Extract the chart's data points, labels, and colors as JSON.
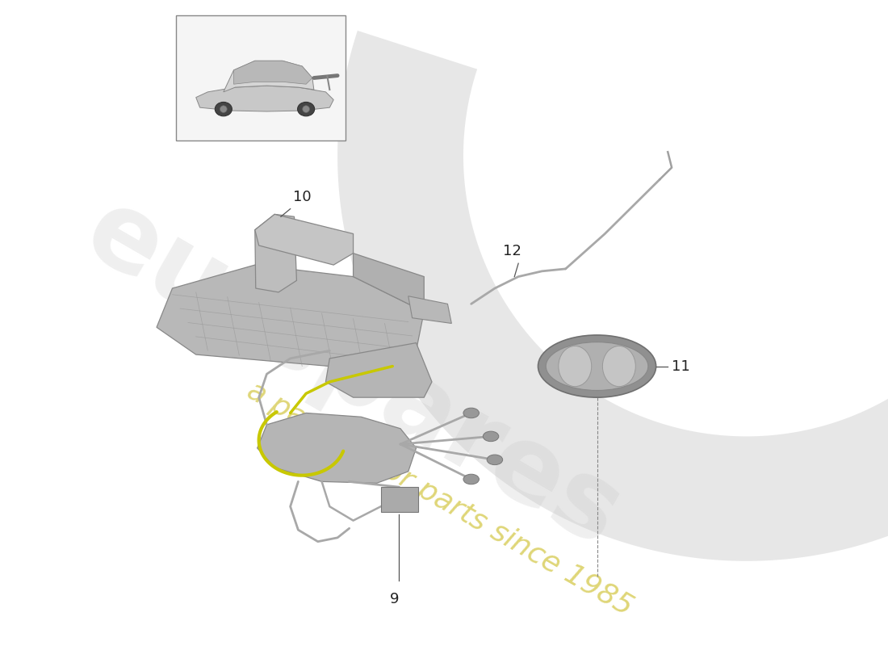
{
  "background_color": "#ffffff",
  "watermark_text_1": "eurspares",
  "watermark_text_2": "a passion for parts since 1985",
  "watermark_color_1": "#cccccc",
  "watermark_color_2": "#d4c84a",
  "swoosh_color": "#d0d0d0",
  "part_color_light": "#c0c0c0",
  "part_color_mid": "#b0b0b0",
  "part_color_dark": "#989898",
  "edge_color": "#888888",
  "wire_yellow": "#c8c800",
  "wire_gray": "#a8a8a8",
  "label_color": "#222222",
  "leader_color": "#555555"
}
